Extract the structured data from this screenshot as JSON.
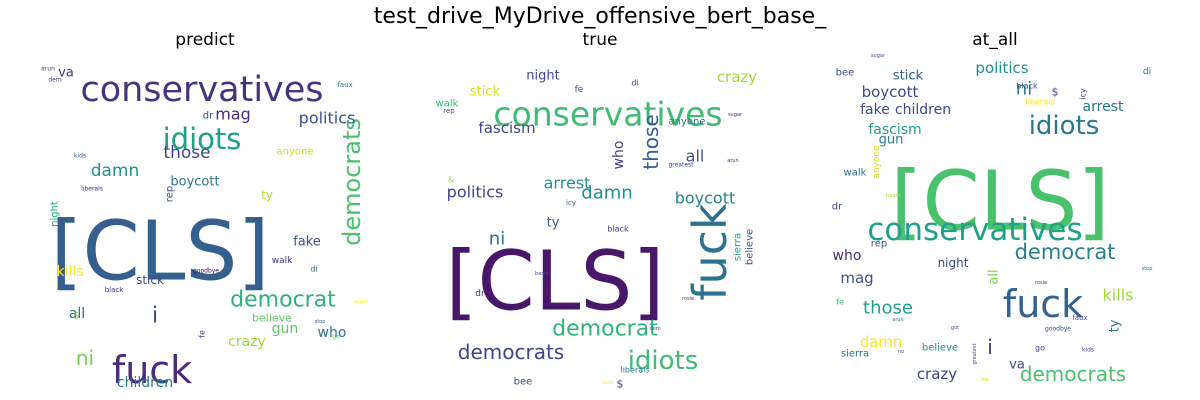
{
  "figure": {
    "title": "test_drive_MyDrive_offensive_bert_base_"
  },
  "chart_data": [
    {
      "type": "wordcloud",
      "title": "predict",
      "words": [
        {
          "text": "[CLS]",
          "color": "#355f8d",
          "size": 82
        },
        {
          "text": "conservatives",
          "color": "#46337e",
          "size": 35
        },
        {
          "text": "fuck",
          "color": "#472d7b",
          "size": 38
        },
        {
          "text": "idiots",
          "color": "#1fa187",
          "size": 29
        },
        {
          "text": "democrats",
          "color": "#4ac16d",
          "size": 24,
          "rotate": -90
        },
        {
          "text": "democrat",
          "color": "#2db27d",
          "size": 22
        },
        {
          "text": "politics",
          "color": "#3b528b",
          "size": 16
        },
        {
          "text": "mag",
          "color": "#472d7b",
          "size": 16
        },
        {
          "text": "those",
          "color": "#414487",
          "size": 17
        },
        {
          "text": "damn",
          "color": "#21918c",
          "size": 17
        },
        {
          "text": "i",
          "color": "#3e4a89",
          "size": 22
        },
        {
          "text": "ni",
          "color": "#7ad151",
          "size": 20
        },
        {
          "text": "kills",
          "color": "#fde725",
          "size": 14
        },
        {
          "text": "all",
          "color": "#33638d",
          "size": 14
        },
        {
          "text": "boycott",
          "color": "#2a788e",
          "size": 13
        },
        {
          "text": "fake",
          "color": "#3b528b",
          "size": 13
        },
        {
          "text": "crazy",
          "color": "#a0da39",
          "size": 14
        },
        {
          "text": "gun",
          "color": "#5ec962",
          "size": 14
        },
        {
          "text": "who",
          "color": "#2c728e",
          "size": 14
        },
        {
          "text": "children",
          "color": "#2a788e",
          "size": 14
        },
        {
          "text": "believe",
          "color": "#5ec962",
          "size": 11
        },
        {
          "text": "stick",
          "color": "#3e4a89",
          "size": 12
        },
        {
          "text": "ty",
          "color": "#addc30",
          "size": 12
        },
        {
          "text": "va",
          "color": "#443983",
          "size": 13
        },
        {
          "text": "anyone",
          "color": "#d2e21b",
          "size": 10
        },
        {
          "text": "night",
          "color": "#22a884",
          "size": 10,
          "rotate": -90
        },
        {
          "text": "rep",
          "color": "#3b528b",
          "size": 10,
          "rotate": -90
        },
        {
          "text": "dr",
          "color": "#3e4a89",
          "size": 10
        },
        {
          "text": "walk",
          "color": "#46337e",
          "size": 9
        },
        {
          "text": "di",
          "color": "#31688e",
          "size": 8
        },
        {
          "text": "$",
          "color": "#7ad151",
          "size": 10
        },
        {
          "text": "fe",
          "color": "#3b528b",
          "size": 8,
          "rotate": -90
        },
        {
          "text": "black",
          "color": "#472d7b",
          "size": 7
        },
        {
          "text": "goodbye",
          "color": "#440154",
          "size": 6
        },
        {
          "text": "liberals",
          "color": "#482878",
          "size": 6
        },
        {
          "text": "kids",
          "color": "#355f8d",
          "size": 6
        },
        {
          "text": "faux",
          "color": "#2a788e",
          "size": 7
        },
        {
          "text": "arun",
          "color": "#3e4a89",
          "size": 6
        },
        {
          "text": "dem",
          "color": "#46337e",
          "size": 6
        },
        {
          "text": "sugar",
          "color": "#fde725",
          "size": 5
        },
        {
          "text": "stop",
          "color": "#355f8d",
          "size": 5
        },
        {
          "text": "go",
          "color": "#7ad151",
          "size": 6
        }
      ]
    },
    {
      "type": "wordcloud",
      "title": "true",
      "words": [
        {
          "text": "[CLS]",
          "color": "#481769",
          "size": 82
        },
        {
          "text": "conservatives",
          "color": "#3fbc73",
          "size": 33
        },
        {
          "text": "fuck",
          "color": "#2c728e",
          "size": 46,
          "rotate": -90
        },
        {
          "text": "idiots",
          "color": "#3fbc73",
          "size": 26
        },
        {
          "text": "democrat",
          "color": "#2fb47c",
          "size": 22
        },
        {
          "text": "democrats",
          "color": "#414487",
          "size": 20
        },
        {
          "text": "those",
          "color": "#355f8d",
          "size": 20,
          "rotate": -90
        },
        {
          "text": "damn",
          "color": "#21918c",
          "size": 18
        },
        {
          "text": "fascism",
          "color": "#3e4a89",
          "size": 15
        },
        {
          "text": "politics",
          "color": "#414487",
          "size": 16
        },
        {
          "text": "arrest",
          "color": "#21918c",
          "size": 16
        },
        {
          "text": "boycott",
          "color": "#26818e",
          "size": 16
        },
        {
          "text": "crazy",
          "color": "#a0da39",
          "size": 15
        },
        {
          "text": "ni",
          "color": "#2c728e",
          "size": 18
        },
        {
          "text": "all",
          "color": "#3b528b",
          "size": 16
        },
        {
          "text": "who",
          "color": "#433e85",
          "size": 14,
          "rotate": -90
        },
        {
          "text": "night",
          "color": "#3e4a89",
          "size": 13
        },
        {
          "text": "stick",
          "color": "#d2e21b",
          "size": 13
        },
        {
          "text": "ty",
          "color": "#33638d",
          "size": 13
        },
        {
          "text": "anyone",
          "color": "#2c728e",
          "size": 10
        },
        {
          "text": "believe",
          "color": "#3b528b",
          "size": 10,
          "rotate": -90
        },
        {
          "text": "sierra",
          "color": "#1fa187",
          "size": 10,
          "rotate": -90
        },
        {
          "text": "walk",
          "color": "#2fb47c",
          "size": 10
        },
        {
          "text": "fe",
          "color": "#3b528b",
          "size": 9
        },
        {
          "text": "di",
          "color": "#46337e",
          "size": 8
        },
        {
          "text": "bee",
          "color": "#3e4a89",
          "size": 10
        },
        {
          "text": "black",
          "color": "#472d7b",
          "size": 8
        },
        {
          "text": "liberals",
          "color": "#2a788e",
          "size": 8
        },
        {
          "text": "$",
          "color": "#3e4a89",
          "size": 11
        },
        {
          "text": "dr",
          "color": "#46337e",
          "size": 9
        },
        {
          "text": "icy",
          "color": "#3b528b",
          "size": 7
        },
        {
          "text": "greatest",
          "color": "#3e4a89",
          "size": 6
        },
        {
          "text": "arun",
          "color": "#46337e",
          "size": 5
        },
        {
          "text": "rep",
          "color": "#3e4a89",
          "size": 7
        },
        {
          "text": "beats",
          "color": "#414487",
          "size": 5
        },
        {
          "text": "sugar",
          "color": "#46337e",
          "size": 5
        },
        {
          "text": "kids",
          "color": "#fde725",
          "size": 5
        },
        {
          "text": "rosie",
          "color": "#46337e",
          "size": 5
        },
        {
          "text": "dem",
          "color": "#3b528b",
          "size": 5
        },
        {
          "text": "&",
          "color": "#a0da39",
          "size": 8
        }
      ]
    },
    {
      "type": "wordcloud",
      "title": "at_all",
      "words": [
        {
          "text": "[CLS]",
          "color": "#4ac16d",
          "size": 82
        },
        {
          "text": "conservatives",
          "color": "#1fa187",
          "size": 31
        },
        {
          "text": "fuck",
          "color": "#33638d",
          "size": 38
        },
        {
          "text": "idiots",
          "color": "#2a788e",
          "size": 26
        },
        {
          "text": "democrat",
          "color": "#26818e",
          "size": 21
        },
        {
          "text": "democrats",
          "color": "#4ac16d",
          "size": 20
        },
        {
          "text": "those",
          "color": "#1fa187",
          "size": 18
        },
        {
          "text": "politics",
          "color": "#21918c",
          "size": 15
        },
        {
          "text": "boycott",
          "color": "#3e4a89",
          "size": 15
        },
        {
          "text": "fake",
          "color": "#3e4a89",
          "size": 14
        },
        {
          "text": "children",
          "color": "#3e4a89",
          "size": 14
        },
        {
          "text": "fascism",
          "color": "#1fa187",
          "size": 14
        },
        {
          "text": "arrest",
          "color": "#2c728e",
          "size": 14
        },
        {
          "text": "ni",
          "color": "#26818e",
          "size": 18
        },
        {
          "text": "kills",
          "color": "#a0da39",
          "size": 16
        },
        {
          "text": "mag",
          "color": "#3b528b",
          "size": 15
        },
        {
          "text": "who",
          "color": "#472d7b",
          "size": 14
        },
        {
          "text": "damn",
          "color": "#fde725",
          "size": 15
        },
        {
          "text": "crazy",
          "color": "#414487",
          "size": 15
        },
        {
          "text": "gun",
          "color": "#2a788e",
          "size": 13
        },
        {
          "text": "stick",
          "color": "#355f8d",
          "size": 13
        },
        {
          "text": "night",
          "color": "#3e4a89",
          "size": 12
        },
        {
          "text": "all",
          "color": "#7ad151",
          "size": 13,
          "rotate": -90
        },
        {
          "text": "ty",
          "color": "#2a788e",
          "size": 13,
          "rotate": -90
        },
        {
          "text": "i",
          "color": "#46337e",
          "size": 20
        },
        {
          "text": "va",
          "color": "#3e4a89",
          "size": 13
        },
        {
          "text": "bee",
          "color": "#3e4a89",
          "size": 10
        },
        {
          "text": "walk",
          "color": "#2c728e",
          "size": 10
        },
        {
          "text": "dr",
          "color": "#3e4a89",
          "size": 10
        },
        {
          "text": "rep",
          "color": "#3b528b",
          "size": 10
        },
        {
          "text": "anyone",
          "color": "#d2e21b",
          "size": 9,
          "rotate": -90
        },
        {
          "text": "believe",
          "color": "#21918c",
          "size": 10
        },
        {
          "text": "sierra",
          "color": "#2c728e",
          "size": 10
        },
        {
          "text": "di",
          "color": "#2c728e",
          "size": 9
        },
        {
          "text": "black",
          "color": "#3e4a89",
          "size": 8
        },
        {
          "text": "$",
          "color": "#3e4a89",
          "size": 11
        },
        {
          "text": "icy",
          "color": "#3e4a89",
          "size": 8,
          "rotate": -90
        },
        {
          "text": "liberals",
          "color": "#fde725",
          "size": 8
        },
        {
          "text": "fe",
          "color": "#3fbc73",
          "size": 8
        },
        {
          "text": "go",
          "color": "#3e4a89",
          "size": 8
        },
        {
          "text": "faux",
          "color": "#3e4a89",
          "size": 7
        },
        {
          "text": "goodbye",
          "color": "#3e4a89",
          "size": 6
        },
        {
          "text": "kids",
          "color": "#3e4a89",
          "size": 6
        },
        {
          "text": "arun",
          "color": "#2c728e",
          "size": 5
        },
        {
          "text": "greatest",
          "color": "#3e4a89",
          "size": 5,
          "rotate": -90
        },
        {
          "text": "beats",
          "color": "#a0da39",
          "size": 5
        },
        {
          "text": "stop",
          "color": "#2c728e",
          "size": 5
        },
        {
          "text": "sugar",
          "color": "#3e4a89",
          "size": 5
        },
        {
          "text": "rosie",
          "color": "#46337e",
          "size": 5
        },
        {
          "text": "got",
          "color": "#3e4a89",
          "size": 5
        },
        {
          "text": "joe",
          "color": "#d2e21b",
          "size": 5
        },
        {
          "text": "no",
          "color": "#3e4a89",
          "size": 5
        }
      ]
    }
  ]
}
